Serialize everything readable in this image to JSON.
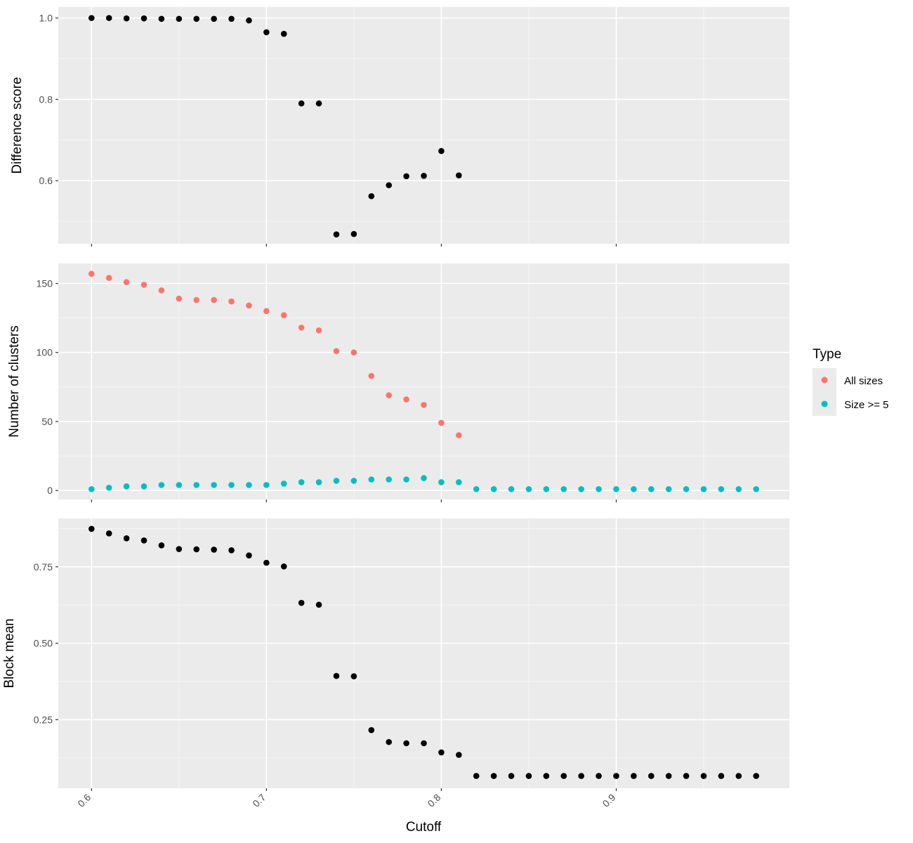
{
  "colors": {
    "panel_bg": "#ebebeb",
    "grid_major": "#ffffff",
    "grid_minor": "#f7f7f7",
    "tick": "#333333",
    "series_black": "#000000",
    "all_sizes": "#f8766d",
    "size_ge_5": "#00bfc4"
  },
  "legend": {
    "title": "Type",
    "items": [
      {
        "label": "All sizes",
        "color": "#f8766d"
      },
      {
        "label": "Size >= 5",
        "color": "#00bfc4"
      }
    ]
  },
  "chart_data": [
    {
      "type": "scatter",
      "ylabel": "Difference score",
      "xlim": [
        0.581,
        0.999
      ],
      "ylim": [
        0.445,
        1.027
      ],
      "yticks": [
        {
          "v": 0.6,
          "label": "0.6"
        },
        {
          "v": 0.8,
          "label": "0.8"
        },
        {
          "v": 1.0,
          "label": "1.0"
        }
      ],
      "series": [
        {
          "color": "#000000",
          "x": [
            0.6,
            0.61,
            0.62,
            0.63,
            0.64,
            0.65,
            0.66,
            0.67,
            0.68,
            0.69,
            0.7,
            0.71,
            0.72,
            0.73,
            0.74,
            0.75,
            0.76,
            0.77,
            0.78,
            0.79,
            0.8,
            0.81
          ],
          "y": [
            1.0,
            1.0,
            0.999,
            0.999,
            0.998,
            0.998,
            0.998,
            0.998,
            0.998,
            0.994,
            0.965,
            0.961,
            0.79,
            0.79,
            0.468,
            0.469,
            0.562,
            0.589,
            0.611,
            0.612,
            0.673,
            0.613
          ]
        }
      ]
    },
    {
      "type": "scatter",
      "ylabel": "Number of clusters",
      "xlim": [
        0.581,
        0.999
      ],
      "ylim": [
        -6.5,
        164.5
      ],
      "yticks": [
        {
          "v": 0,
          "label": "0"
        },
        {
          "v": 50,
          "label": "50"
        },
        {
          "v": 100,
          "label": "100"
        },
        {
          "v": 150,
          "label": "150"
        }
      ],
      "series": [
        {
          "name": "All sizes",
          "color": "#f8766d",
          "x": [
            0.6,
            0.61,
            0.62,
            0.63,
            0.64,
            0.65,
            0.66,
            0.67,
            0.68,
            0.69,
            0.7,
            0.71,
            0.72,
            0.73,
            0.74,
            0.75,
            0.76,
            0.77,
            0.78,
            0.79,
            0.8,
            0.81
          ],
          "y": [
            157,
            154,
            151,
            149,
            145,
            139,
            138,
            138,
            137,
            134,
            130,
            127,
            118,
            116,
            101,
            100,
            83,
            69,
            66,
            62,
            49,
            40
          ]
        },
        {
          "name": "Size >= 5",
          "color": "#00bfc4",
          "x": [
            0.6,
            0.61,
            0.62,
            0.63,
            0.64,
            0.65,
            0.66,
            0.67,
            0.68,
            0.69,
            0.7,
            0.71,
            0.72,
            0.73,
            0.74,
            0.75,
            0.76,
            0.77,
            0.78,
            0.79,
            0.8,
            0.81,
            0.82,
            0.83,
            0.84,
            0.85,
            0.86,
            0.87,
            0.88,
            0.89,
            0.9,
            0.91,
            0.92,
            0.93,
            0.94,
            0.95,
            0.96,
            0.97,
            0.98
          ],
          "y": [
            1,
            2,
            3,
            3,
            4,
            4,
            4,
            4,
            4,
            4,
            4,
            5,
            6,
            6,
            7,
            7,
            8,
            8,
            8,
            9,
            6,
            6,
            1,
            1,
            1,
            1,
            1,
            1,
            1,
            1,
            1,
            1,
            1,
            1,
            1,
            1,
            1,
            1,
            1
          ]
        }
      ]
    },
    {
      "type": "scatter",
      "ylabel": "Block mean",
      "xlabel": "Cutoff",
      "xlim": [
        0.581,
        0.999
      ],
      "ylim": [
        0.026,
        0.908
      ],
      "xticks": [
        {
          "v": 0.6,
          "label": "0.6"
        },
        {
          "v": 0.7,
          "label": "0.7"
        },
        {
          "v": 0.8,
          "label": "0.8"
        },
        {
          "v": 0.9,
          "label": "0.9"
        }
      ],
      "yticks": [
        {
          "v": 0.25,
          "label": "0.25"
        },
        {
          "v": 0.5,
          "label": "0.50"
        },
        {
          "v": 0.75,
          "label": "0.75"
        }
      ],
      "series": [
        {
          "color": "#000000",
          "x": [
            0.6,
            0.61,
            0.62,
            0.63,
            0.64,
            0.65,
            0.66,
            0.67,
            0.68,
            0.69,
            0.7,
            0.71,
            0.72,
            0.73,
            0.74,
            0.75,
            0.76,
            0.77,
            0.78,
            0.79,
            0.8,
            0.81,
            0.82,
            0.83,
            0.84,
            0.85,
            0.86,
            0.87,
            0.88,
            0.89,
            0.9,
            0.91,
            0.92,
            0.93,
            0.94,
            0.95,
            0.96,
            0.97,
            0.98
          ],
          "y": [
            0.874,
            0.859,
            0.843,
            0.836,
            0.82,
            0.808,
            0.807,
            0.806,
            0.804,
            0.787,
            0.763,
            0.751,
            0.632,
            0.626,
            0.393,
            0.392,
            0.216,
            0.177,
            0.173,
            0.173,
            0.143,
            0.135,
            0.066,
            0.066,
            0.066,
            0.066,
            0.066,
            0.066,
            0.066,
            0.066,
            0.066,
            0.066,
            0.066,
            0.066,
            0.066,
            0.066,
            0.066,
            0.066,
            0.066
          ]
        }
      ]
    }
  ]
}
